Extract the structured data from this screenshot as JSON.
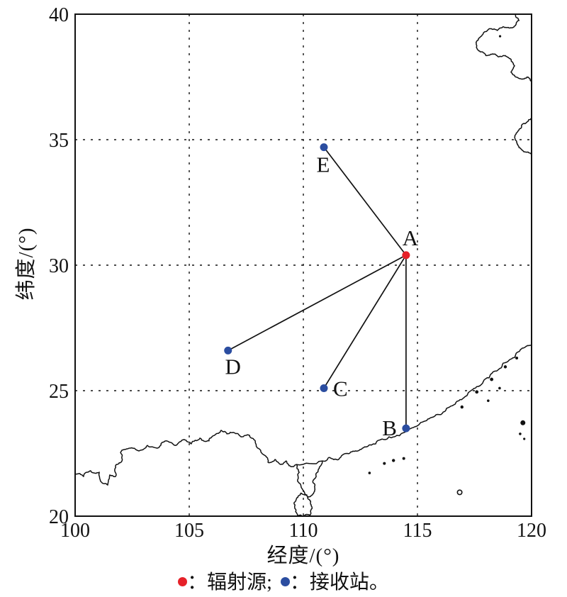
{
  "figure": {
    "background": "#ffffff",
    "line_color": "#111111",
    "accent_red": "#e62129",
    "accent_blue": "#2b4da0"
  },
  "chart_data": {
    "type": "scatter",
    "title": "",
    "xlabel": "经度/(°)",
    "ylabel": "纬度/(°)",
    "xlim": [
      100,
      120
    ],
    "ylim": [
      20,
      40
    ],
    "xticks": [
      100,
      105,
      110,
      115,
      120
    ],
    "yticks": [
      20,
      25,
      30,
      35,
      40
    ],
    "grid": {
      "style": "dashed",
      "interior_xticks": [
        105,
        110,
        115
      ],
      "interior_yticks": [
        25,
        30,
        35
      ]
    },
    "series": [
      {
        "name": "辐射源",
        "color": "#e62129",
        "points": [
          {
            "label": "A",
            "lon": 114.5,
            "lat": 30.4,
            "label_anchor": "middle",
            "label_dx": 6,
            "label_dy": -14
          }
        ]
      },
      {
        "name": "接收站",
        "color": "#2b4da0",
        "points": [
          {
            "label": "B",
            "lon": 114.5,
            "lat": 23.5,
            "label_anchor": "end",
            "label_dx": -13,
            "label_dy": 10
          },
          {
            "label": "C",
            "lon": 110.9,
            "lat": 25.1,
            "label_anchor": "start",
            "label_dx": 13,
            "label_dy": 11
          },
          {
            "label": "D",
            "lon": 106.7,
            "lat": 26.6,
            "label_anchor": "middle",
            "label_dx": 7,
            "label_dy": 33
          },
          {
            "label": "E",
            "lon": 110.9,
            "lat": 34.7,
            "label_anchor": "middle",
            "label_dx": -1,
            "label_dy": 35
          }
        ]
      }
    ],
    "connections": [
      [
        "A",
        "B"
      ],
      [
        "A",
        "C"
      ],
      [
        "A",
        "D"
      ],
      [
        "A",
        "E"
      ]
    ],
    "coastlines": [
      {
        "name": "south-china-coast",
        "closed": false,
        "points": [
          [
            100.0,
            21.69
          ],
          [
            100.37,
            21.58
          ],
          [
            100.68,
            21.81
          ],
          [
            101.06,
            21.75
          ],
          [
            101.15,
            21.36
          ],
          [
            101.43,
            21.24
          ],
          [
            101.52,
            21.64
          ],
          [
            101.77,
            21.58
          ],
          [
            101.8,
            22.06
          ],
          [
            102.05,
            22.2
          ],
          [
            101.99,
            22.54
          ],
          [
            102.36,
            22.71
          ],
          [
            102.8,
            22.6
          ],
          [
            103.17,
            22.82
          ],
          [
            103.6,
            22.71
          ],
          [
            104.01,
            23.0
          ],
          [
            104.41,
            22.82
          ],
          [
            104.78,
            23.05
          ],
          [
            105.09,
            22.88
          ],
          [
            105.47,
            23.11
          ],
          [
            105.87,
            23.0
          ],
          [
            106.18,
            23.28
          ],
          [
            106.4,
            23.42
          ],
          [
            106.65,
            23.28
          ],
          [
            106.96,
            23.33
          ],
          [
            107.27,
            23.16
          ],
          [
            107.64,
            23.22
          ],
          [
            107.89,
            23.0
          ],
          [
            108.2,
            22.49
          ],
          [
            108.45,
            22.15
          ],
          [
            108.76,
            22.26
          ],
          [
            109.01,
            22.06
          ],
          [
            109.25,
            22.2
          ],
          [
            109.44,
            21.98
          ],
          [
            109.69,
            22.06
          ],
          [
            110.84,
            22.2
          ],
          [
            111.15,
            22.34
          ],
          [
            111.55,
            22.26
          ],
          [
            111.99,
            22.49
          ],
          [
            112.39,
            22.6
          ],
          [
            112.8,
            22.77
          ],
          [
            113.17,
            22.88
          ],
          [
            113.57,
            23.05
          ],
          [
            113.98,
            23.16
          ],
          [
            114.41,
            23.33
          ],
          [
            114.88,
            23.56
          ],
          [
            115.34,
            23.79
          ],
          [
            115.81,
            24.04
          ],
          [
            116.27,
            24.29
          ],
          [
            116.74,
            24.58
          ],
          [
            117.2,
            24.86
          ],
          [
            117.67,
            25.17
          ],
          [
            118.14,
            25.51
          ],
          [
            118.6,
            25.88
          ],
          [
            119.01,
            26.21
          ],
          [
            119.38,
            26.53
          ],
          [
            119.69,
            26.72
          ],
          [
            120.0,
            26.81
          ]
        ]
      },
      {
        "name": "leizhou-peninsula",
        "closed": false,
        "points": [
          [
            109.69,
            22.06
          ],
          [
            109.82,
            21.75
          ],
          [
            109.75,
            21.45
          ],
          [
            109.9,
            21.2
          ],
          [
            110.05,
            20.95
          ],
          [
            110.2,
            20.75
          ],
          [
            110.4,
            20.85
          ],
          [
            110.5,
            21.1
          ],
          [
            110.42,
            21.4
          ],
          [
            110.55,
            21.65
          ],
          [
            110.7,
            21.9
          ],
          [
            110.84,
            22.2
          ]
        ]
      },
      {
        "name": "hainan-island",
        "closed": true,
        "points": [
          [
            109.62,
            20.35
          ],
          [
            109.7,
            20.7
          ],
          [
            109.9,
            20.92
          ],
          [
            110.15,
            20.85
          ],
          [
            110.32,
            20.6
          ],
          [
            110.38,
            20.3
          ],
          [
            110.3,
            20.05
          ],
          [
            110.0,
            19.99
          ],
          [
            109.75,
            20.02
          ],
          [
            109.62,
            20.35
          ]
        ]
      },
      {
        "name": "bohai-shandong-coast",
        "closed": false,
        "points": [
          [
            119.3,
            40.0
          ],
          [
            119.45,
            39.75
          ],
          [
            119.3,
            39.55
          ],
          [
            119.05,
            39.45
          ],
          [
            118.75,
            39.5
          ],
          [
            118.5,
            39.35
          ],
          [
            118.2,
            39.42
          ],
          [
            117.95,
            39.3
          ],
          [
            117.7,
            39.05
          ],
          [
            117.6,
            38.75
          ],
          [
            117.75,
            38.5
          ],
          [
            118.0,
            38.35
          ],
          [
            118.3,
            38.42
          ],
          [
            118.55,
            38.3
          ],
          [
            118.85,
            38.35
          ],
          [
            119.1,
            38.2
          ],
          [
            119.25,
            37.95
          ],
          [
            119.1,
            37.7
          ],
          [
            119.3,
            37.5
          ],
          [
            119.55,
            37.42
          ],
          [
            119.8,
            37.5
          ],
          [
            119.95,
            37.35
          ],
          [
            120.0,
            37.3
          ]
        ]
      },
      {
        "name": "jiangsu-coast",
        "closed": false,
        "points": [
          [
            120.0,
            35.85
          ],
          [
            119.8,
            35.7
          ],
          [
            119.6,
            35.62
          ],
          [
            119.45,
            35.4
          ],
          [
            119.3,
            35.2
          ],
          [
            119.28,
            35.0
          ],
          [
            119.4,
            34.78
          ],
          [
            119.55,
            34.62
          ],
          [
            119.8,
            34.5
          ],
          [
            120.0,
            34.42
          ]
        ]
      }
    ],
    "islands": [
      {
        "lon": 118.62,
        "lat": 39.12,
        "r": 1.6
      },
      {
        "lon": 119.62,
        "lat": 23.72,
        "r": 3.5
      },
      {
        "lon": 119.5,
        "lat": 23.28,
        "r": 1.8
      },
      {
        "lon": 119.68,
        "lat": 23.08,
        "r": 1.6
      },
      {
        "lon": 113.55,
        "lat": 22.1,
        "r": 2.0
      },
      {
        "lon": 113.95,
        "lat": 22.22,
        "r": 2.2
      },
      {
        "lon": 114.4,
        "lat": 22.3,
        "r": 2.0
      },
      {
        "lon": 112.9,
        "lat": 21.72,
        "r": 1.8
      },
      {
        "lon": 116.95,
        "lat": 24.35,
        "r": 2.2
      },
      {
        "lon": 117.6,
        "lat": 24.95,
        "r": 2.4
      },
      {
        "lon": 118.25,
        "lat": 25.45,
        "r": 2.4
      },
      {
        "lon": 118.85,
        "lat": 25.95,
        "r": 2.2
      },
      {
        "lon": 119.35,
        "lat": 26.3,
        "r": 2.0
      },
      {
        "lon": 118.1,
        "lat": 24.6,
        "r": 1.8
      },
      {
        "lon": 118.6,
        "lat": 25.1,
        "r": 1.8
      }
    ],
    "island_rings": [
      {
        "lon": 116.85,
        "lat": 20.95,
        "r": 3.2
      }
    ]
  },
  "legend": {
    "items": [
      {
        "color": "#e62129",
        "label": "：辐射源;"
      },
      {
        "color": "#2b4da0",
        "label": "：接收站。"
      }
    ]
  }
}
